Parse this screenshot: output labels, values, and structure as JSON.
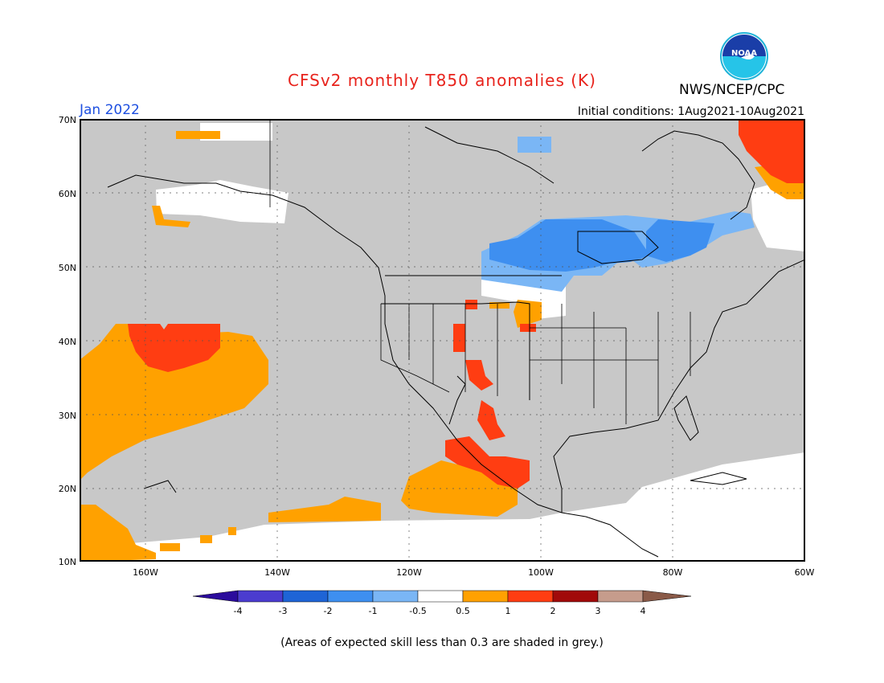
{
  "title": "CFSv2 monthly T850 anomalies (K)",
  "organization": "NWS/NCEP/CPC",
  "logo_text": "NOAA",
  "period": "Jan 2022",
  "initial_conditions": "Initial conditions: 1Aug2021-10Aug2021",
  "footnote": "(Areas of expected skill less than 0.3 are shaded in grey.)",
  "map": {
    "lat_range": [
      10,
      70
    ],
    "lon_range": [
      -170,
      -60
    ],
    "lat_labels": [
      "70N",
      "60N",
      "50N",
      "40N",
      "30N",
      "20N",
      "10N"
    ],
    "lon_labels": [
      "160W",
      "140W",
      "120W",
      "100W",
      "80W",
      "60W"
    ],
    "grid": true,
    "colors": {
      "grey_low_skill": "#c8c8c8",
      "neutral": "#ffffff",
      "warm_0_5_1": "#ffa100",
      "warm_1_2": "#ff3d12",
      "cool_m1_m0_5": "#7ab6f5",
      "cool_m2_m1": "#3e8ff0"
    }
  },
  "colorbar": {
    "labels": [
      "-4",
      "-3",
      "-2",
      "-1",
      "-0.5",
      "0.5",
      "1",
      "2",
      "3",
      "4"
    ],
    "colors": [
      "#2b0c9c",
      "#4b3ccf",
      "#1e64d6",
      "#3e8ff0",
      "#7ab6f5",
      "#ffffff",
      "#ffa100",
      "#ff3d12",
      "#a10a0a",
      "#c69c8c",
      "#8a5a48"
    ]
  }
}
